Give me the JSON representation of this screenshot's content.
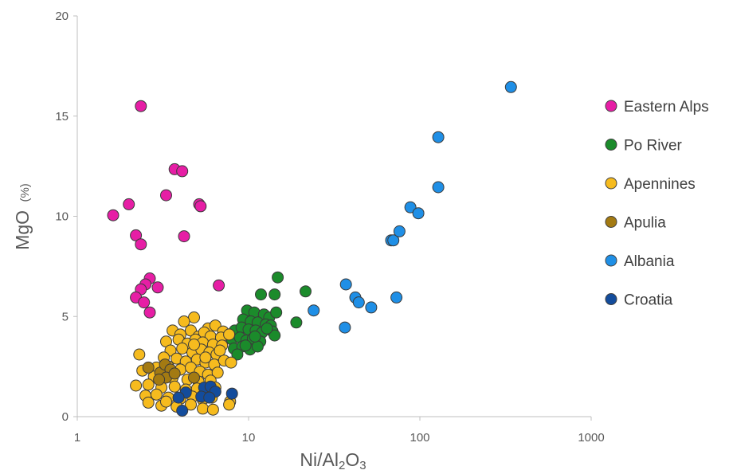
{
  "chart_data": {
    "type": "scatter",
    "x_scale": "log",
    "xlim": [
      1,
      1000
    ],
    "ylim": [
      0,
      20
    ],
    "xticks": [
      "1",
      "10",
      "100",
      "1000"
    ],
    "yticks": [
      "0",
      "5",
      "10",
      "15",
      "20"
    ],
    "xlabel": {
      "main": "Ni/Al",
      "sub": "2",
      "tail": "O",
      "sub2": "3"
    },
    "ylabel": {
      "main": "MgO",
      "unit": "(%)"
    },
    "grid": false,
    "legend_position": "right",
    "series": [
      {
        "name": "Eastern Alps",
        "color": "#e61ea5",
        "points": [
          [
            2.35,
            15.5
          ],
          [
            3.7,
            12.35
          ],
          [
            4.1,
            12.25
          ],
          [
            3.3,
            11.05
          ],
          [
            2.0,
            10.6
          ],
          [
            1.62,
            10.05
          ],
          [
            5.15,
            10.6
          ],
          [
            5.25,
            10.5
          ],
          [
            2.2,
            9.05
          ],
          [
            4.2,
            9.0
          ],
          [
            2.35,
            8.6
          ],
          [
            2.65,
            6.9
          ],
          [
            2.5,
            6.6
          ],
          [
            2.95,
            6.45
          ],
          [
            2.35,
            6.35
          ],
          [
            2.2,
            5.95
          ],
          [
            2.45,
            5.7
          ],
          [
            2.65,
            5.2
          ],
          [
            6.7,
            6.55
          ]
        ]
      },
      {
        "name": "Po River",
        "color": "#1b8b2b",
        "points": [
          [
            14.8,
            6.95
          ],
          [
            11.8,
            6.1
          ],
          [
            14.2,
            6.1
          ],
          [
            21.5,
            6.25
          ],
          [
            19.0,
            4.7
          ],
          [
            9.8,
            5.3
          ],
          [
            10.8,
            5.2
          ],
          [
            12.3,
            5.1
          ],
          [
            13.2,
            4.95
          ],
          [
            14.5,
            5.2
          ],
          [
            9.3,
            4.85
          ],
          [
            10.3,
            4.75
          ],
          [
            11.3,
            4.7
          ],
          [
            12.6,
            4.6
          ],
          [
            13.5,
            4.55
          ],
          [
            8.3,
            4.3
          ],
          [
            9.1,
            4.45
          ],
          [
            10.0,
            4.35
          ],
          [
            11.0,
            4.3
          ],
          [
            12.0,
            4.2
          ],
          [
            13.8,
            4.25
          ],
          [
            8.0,
            3.85
          ],
          [
            8.9,
            3.95
          ],
          [
            9.7,
            3.8
          ],
          [
            10.6,
            3.9
          ],
          [
            11.7,
            3.75
          ],
          [
            14.2,
            4.05
          ],
          [
            8.2,
            3.4
          ],
          [
            9.2,
            3.5
          ],
          [
            10.2,
            3.35
          ],
          [
            11.3,
            3.5
          ],
          [
            8.6,
            3.1
          ],
          [
            9.6,
            3.55
          ],
          [
            10.9,
            4.0
          ],
          [
            12.8,
            4.4
          ]
        ]
      },
      {
        "name": "Apennines",
        "color": "#f6bb1e",
        "points": [
          [
            4.8,
            4.95
          ],
          [
            4.2,
            4.75
          ],
          [
            5.8,
            4.4
          ],
          [
            6.4,
            4.55
          ],
          [
            7.1,
            4.25
          ],
          [
            3.6,
            4.3
          ],
          [
            4.0,
            4.1
          ],
          [
            4.6,
            4.3
          ],
          [
            5.1,
            4.0
          ],
          [
            5.5,
            4.2
          ],
          [
            6.0,
            4.0
          ],
          [
            6.9,
            3.95
          ],
          [
            7.7,
            4.1
          ],
          [
            3.3,
            3.75
          ],
          [
            3.9,
            3.85
          ],
          [
            4.4,
            3.65
          ],
          [
            4.9,
            3.85
          ],
          [
            5.4,
            3.7
          ],
          [
            6.2,
            3.6
          ],
          [
            7.0,
            3.55
          ],
          [
            3.5,
            3.3
          ],
          [
            4.1,
            3.4
          ],
          [
            4.7,
            3.2
          ],
          [
            5.3,
            3.35
          ],
          [
            5.9,
            3.2
          ],
          [
            6.5,
            3.1
          ],
          [
            2.3,
            3.1
          ],
          [
            3.2,
            2.95
          ],
          [
            3.8,
            2.9
          ],
          [
            4.3,
            2.75
          ],
          [
            5.0,
            2.85
          ],
          [
            5.6,
            2.7
          ],
          [
            6.3,
            2.6
          ],
          [
            7.2,
            2.8
          ],
          [
            7.9,
            2.7
          ],
          [
            2.9,
            2.45
          ],
          [
            3.4,
            2.5
          ],
          [
            4.0,
            2.35
          ],
          [
            4.6,
            2.45
          ],
          [
            5.2,
            2.25
          ],
          [
            5.8,
            2.1
          ],
          [
            6.6,
            2.2
          ],
          [
            2.4,
            2.3
          ],
          [
            2.8,
            2.0
          ],
          [
            3.6,
            1.95
          ],
          [
            4.4,
            1.85
          ],
          [
            5.1,
            1.75
          ],
          [
            6.0,
            1.8
          ],
          [
            2.2,
            1.55
          ],
          [
            2.6,
            1.6
          ],
          [
            3.1,
            1.45
          ],
          [
            3.7,
            1.5
          ],
          [
            4.3,
            1.35
          ],
          [
            5.0,
            1.4
          ],
          [
            5.7,
            1.3
          ],
          [
            6.4,
            1.45
          ],
          [
            2.5,
            1.05
          ],
          [
            2.9,
            1.1
          ],
          [
            3.4,
            0.95
          ],
          [
            4.0,
            0.9
          ],
          [
            4.7,
            1.0
          ],
          [
            5.4,
            0.85
          ],
          [
            6.1,
            0.95
          ],
          [
            7.8,
            0.75
          ],
          [
            3.1,
            0.55
          ],
          [
            3.8,
            0.5
          ],
          [
            4.6,
            0.6
          ],
          [
            5.4,
            0.4
          ],
          [
            6.2,
            0.35
          ],
          [
            7.7,
            0.6
          ],
          [
            2.6,
            0.7
          ],
          [
            3.3,
            0.75
          ],
          [
            5.6,
            2.95
          ],
          [
            4.8,
            3.6
          ],
          [
            6.8,
            3.3
          ]
        ]
      },
      {
        "name": "Apulia",
        "color": "#a37a12",
        "points": [
          [
            2.6,
            2.45
          ],
          [
            3.05,
            2.2
          ],
          [
            3.25,
            2.6
          ],
          [
            3.5,
            2.35
          ],
          [
            3.3,
            1.95
          ],
          [
            3.7,
            2.15
          ],
          [
            3.0,
            1.85
          ],
          [
            4.8,
            1.95
          ]
        ]
      },
      {
        "name": "Albania",
        "color": "#1f8fe6",
        "points": [
          [
            340,
            16.45
          ],
          [
            128,
            13.95
          ],
          [
            128,
            11.45
          ],
          [
            88,
            10.45
          ],
          [
            98,
            10.15
          ],
          [
            68,
            8.8
          ],
          [
            70,
            8.8
          ],
          [
            76,
            9.25
          ],
          [
            37,
            6.6
          ],
          [
            42,
            5.95
          ],
          [
            44,
            5.7
          ],
          [
            52,
            5.45
          ],
          [
            73,
            5.95
          ],
          [
            24,
            5.3
          ],
          [
            36.5,
            4.45
          ]
        ]
      },
      {
        "name": "Croatia",
        "color": "#134c9c",
        "points": [
          [
            4.3,
            1.2
          ],
          [
            3.9,
            0.95
          ],
          [
            5.5,
            1.45
          ],
          [
            6.0,
            1.5
          ],
          [
            6.4,
            1.25
          ],
          [
            5.3,
            1.0
          ],
          [
            5.9,
            0.95
          ],
          [
            4.1,
            0.3
          ],
          [
            8.0,
            1.15
          ]
        ]
      }
    ]
  }
}
